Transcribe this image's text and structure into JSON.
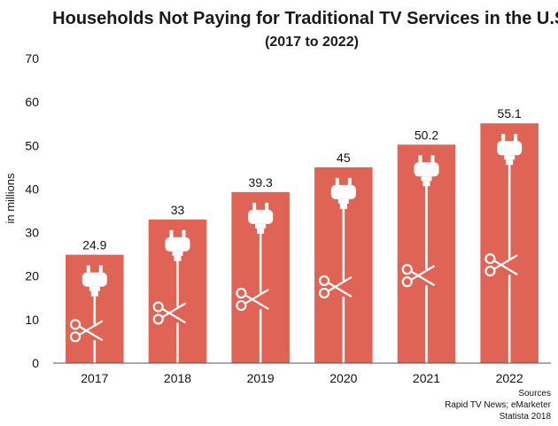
{
  "chart_data": {
    "type": "bar",
    "title": "Households Not Paying for Traditional TV Services in the U.S.",
    "subtitle": "(2017 to 2022)",
    "categories": [
      "2017",
      "2018",
      "2019",
      "2020",
      "2021",
      "2022"
    ],
    "values": [
      24.9,
      33,
      39.3,
      45,
      50.2,
      55.1
    ],
    "data_labels": [
      "24.9",
      "33",
      "39.3",
      "45",
      "50.2",
      "55.1"
    ],
    "ylabel": "in millions",
    "xlabel": "",
    "ylim": [
      0,
      70
    ],
    "yticks": [
      0,
      10,
      20,
      30,
      40,
      50,
      60,
      70
    ],
    "grid": false,
    "bar_color": "#e06456",
    "bar_icon": "unplugged-cord-with-scissors-icon"
  },
  "source": {
    "line1": "Sources",
    "line2": "Rapid TV News; eMarketer",
    "line3": "Statista 2018"
  }
}
